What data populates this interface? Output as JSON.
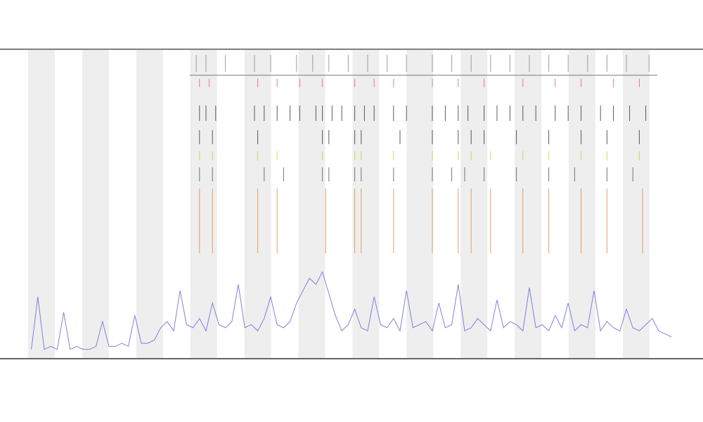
{
  "chart_data": {
    "type": "line",
    "x": [
      0,
      1,
      2,
      3,
      4,
      5,
      6,
      7,
      8,
      9,
      10,
      11,
      12,
      13,
      14,
      15,
      16,
      17,
      18,
      19,
      20,
      21,
      22,
      23,
      24,
      25,
      26,
      27,
      28,
      29,
      30,
      31,
      32,
      33,
      34,
      35,
      36,
      37,
      38,
      39,
      40,
      41,
      42,
      43,
      44,
      45,
      46,
      47,
      48,
      49,
      50,
      51,
      52,
      53,
      54,
      55,
      56,
      57,
      58,
      59,
      60,
      61,
      62,
      63,
      64,
      65,
      66,
      67,
      68,
      69,
      70,
      71,
      72,
      73,
      74,
      75,
      76,
      77,
      78,
      79,
      80,
      81,
      82,
      83,
      84,
      85,
      86,
      87,
      88,
      89,
      90,
      91,
      92,
      93,
      94,
      95,
      96,
      97,
      98,
      99
    ],
    "series": [
      {
        "color": "#6b6bdc",
        "values": [
          3,
          20,
          3,
          4,
          3,
          15,
          3,
          4,
          3,
          3,
          4,
          12,
          4,
          4,
          5,
          4,
          14,
          5,
          5,
          6,
          10,
          12,
          9,
          22,
          11,
          10,
          13,
          9,
          18,
          11,
          10,
          12,
          24,
          10,
          11,
          9,
          13,
          20,
          11,
          10,
          12,
          18,
          22,
          26,
          24,
          28,
          21,
          14,
          9,
          11,
          16,
          10,
          9,
          20,
          11,
          10,
          13,
          9,
          22,
          10,
          11,
          12,
          9,
          18,
          10,
          11,
          24,
          9,
          10,
          13,
          11,
          9,
          19,
          10,
          12,
          11,
          9,
          23,
          10,
          11,
          9,
          14,
          10,
          18,
          9,
          11,
          10,
          22,
          9,
          12,
          10,
          9,
          16,
          10,
          9,
          11,
          13,
          9,
          8,
          7
        ]
      }
    ],
    "xlim": [
      -0.5,
      99.5
    ],
    "ylim": [
      0,
      100
    ],
    "events": [
      {
        "color": "#888888",
        "x": [
          25.5,
          27,
          30,
          34.5,
          37,
          41,
          43.5,
          46,
          49,
          52,
          55,
          58,
          62,
          65,
          68,
          71,
          74,
          77,
          80,
          83,
          86,
          89,
          92,
          95.5
        ]
      },
      {
        "color": "#e06060",
        "x": [
          26,
          27.5,
          35,
          38,
          41.5,
          45,
          50,
          53,
          56,
          62,
          66,
          70,
          76,
          81,
          85,
          90,
          94
        ]
      },
      {
        "color": "#333333",
        "x": [
          26,
          27,
          28.5,
          34.5,
          36,
          38,
          40,
          41.5,
          44,
          45,
          46.5,
          48,
          50,
          51.5,
          53,
          56,
          58,
          62,
          64,
          66,
          67.5,
          70,
          72,
          74,
          76,
          78,
          81,
          83,
          85,
          88,
          90,
          92.5,
          95
        ]
      },
      {
        "color": "#333333",
        "x": [
          26,
          28,
          35,
          45,
          46,
          50,
          51,
          57,
          62,
          66,
          68,
          70,
          75,
          80,
          85,
          89,
          94
        ]
      },
      {
        "color": "#cccc33",
        "x": [
          26,
          28,
          35,
          38,
          45,
          50,
          51,
          56,
          62,
          66,
          68,
          71,
          76,
          80,
          85,
          89,
          94
        ]
      },
      {
        "color": "#555555",
        "x": [
          26,
          28,
          36,
          39,
          45,
          46,
          50,
          51,
          56,
          62,
          65,
          67,
          70,
          75,
          80,
          84,
          89,
          93
        ]
      },
      {
        "color": "#e08a3c",
        "x": [
          26,
          28,
          35,
          38,
          45.5,
          50,
          51,
          56,
          62,
          66,
          68,
          71,
          76,
          80,
          85,
          89,
          94.5
        ]
      }
    ]
  }
}
